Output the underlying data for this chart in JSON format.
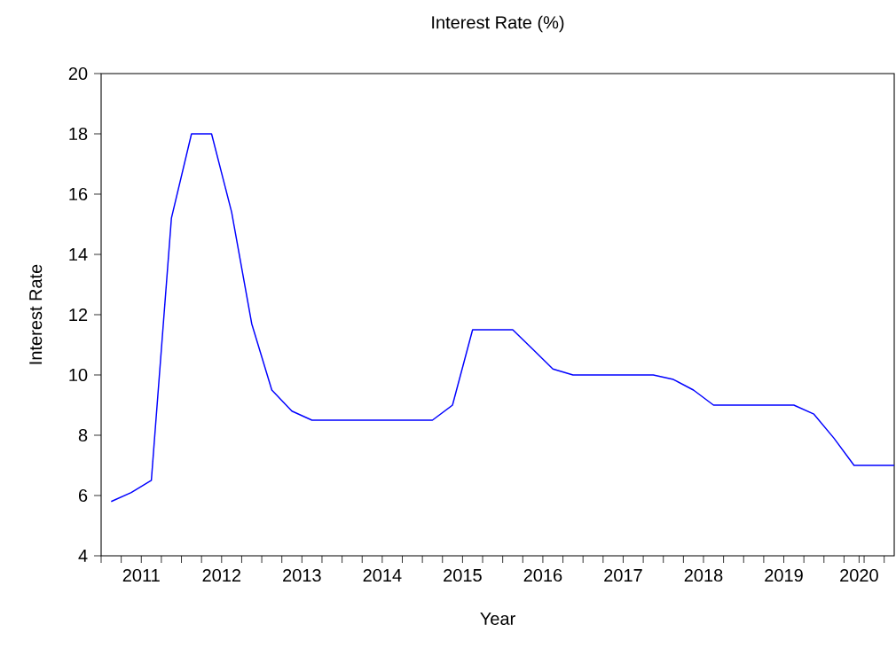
{
  "chart_data": {
    "type": "line",
    "title": "Interest Rate (%)",
    "xlabel": "Year",
    "ylabel": "Interest Rate",
    "x": [
      2011.125,
      2011.375,
      2011.625,
      2011.875,
      2012.125,
      2012.375,
      2012.625,
      2012.875,
      2013.125,
      2013.375,
      2013.625,
      2013.875,
      2014.125,
      2014.375,
      2014.625,
      2014.875,
      2015.125,
      2015.375,
      2015.625,
      2015.875,
      2016.125,
      2016.375,
      2016.625,
      2016.875,
      2017.125,
      2017.375,
      2017.625,
      2017.875,
      2018.125,
      2018.375,
      2018.625,
      2018.875,
      2019.125,
      2019.375,
      2019.625,
      2019.875,
      2020.125,
      2020.375,
      2020.625,
      2020.875
    ],
    "series": [
      {
        "color": "#0000ff",
        "values": [
          5.8,
          6.1,
          6.5,
          15.2,
          18,
          18,
          15.4,
          11.7,
          9.5,
          8.8,
          8.5,
          8.5,
          8.5,
          8.5,
          8.5,
          8.5,
          8.5,
          9,
          11.5,
          11.5,
          11.5,
          10.85,
          10.2,
          10,
          10,
          10,
          10,
          10,
          9.85,
          9.5,
          9,
          9,
          9,
          9,
          9,
          8.7,
          7.9,
          7,
          7,
          7
        ]
      }
    ],
    "xlim": [
      2011,
      2020.875
    ],
    "xticks": [
      {
        "value": 2011,
        "label": null
      },
      {
        "value": 2011.25,
        "label": null
      },
      {
        "value": 2011.5,
        "label": "2011"
      },
      {
        "value": 2011.75,
        "label": null
      },
      {
        "value": 2012,
        "label": null
      },
      {
        "value": 2012.25,
        "label": null
      },
      {
        "value": 2012.5,
        "label": "2012"
      },
      {
        "value": 2012.75,
        "label": null
      },
      {
        "value": 2013,
        "label": null
      },
      {
        "value": 2013.25,
        "label": null
      },
      {
        "value": 2013.5,
        "label": "2013"
      },
      {
        "value": 2013.75,
        "label": null
      },
      {
        "value": 2014,
        "label": null
      },
      {
        "value": 2014.25,
        "label": null
      },
      {
        "value": 2014.5,
        "label": "2014"
      },
      {
        "value": 2014.75,
        "label": null
      },
      {
        "value": 2015,
        "label": null
      },
      {
        "value": 2015.25,
        "label": null
      },
      {
        "value": 2015.5,
        "label": "2015"
      },
      {
        "value": 2015.75,
        "label": null
      },
      {
        "value": 2016,
        "label": null
      },
      {
        "value": 2016.25,
        "label": null
      },
      {
        "value": 2016.5,
        "label": "2016"
      },
      {
        "value": 2016.75,
        "label": null
      },
      {
        "value": 2017,
        "label": null
      },
      {
        "value": 2017.25,
        "label": null
      },
      {
        "value": 2017.5,
        "label": "2017"
      },
      {
        "value": 2017.75,
        "label": null
      },
      {
        "value": 2018,
        "label": null
      },
      {
        "value": 2018.25,
        "label": null
      },
      {
        "value": 2018.5,
        "label": "2018"
      },
      {
        "value": 2018.75,
        "label": null
      },
      {
        "value": 2019,
        "label": null
      },
      {
        "value": 2019.25,
        "label": null
      },
      {
        "value": 2019.5,
        "label": "2019"
      },
      {
        "value": 2019.75,
        "label": null
      },
      {
        "value": 2020,
        "label": null
      },
      {
        "value": 2020.25,
        "label": null
      },
      {
        "value": 2020.4375,
        "label": "2020"
      },
      {
        "value": 2020.5,
        "label": null
      },
      {
        "value": 2020.75,
        "label": null
      }
    ],
    "ylim": [
      4,
      20
    ],
    "yticks": [
      4,
      6,
      8,
      10,
      12,
      14,
      16,
      18,
      20
    ],
    "grid": false,
    "legend": false
  }
}
